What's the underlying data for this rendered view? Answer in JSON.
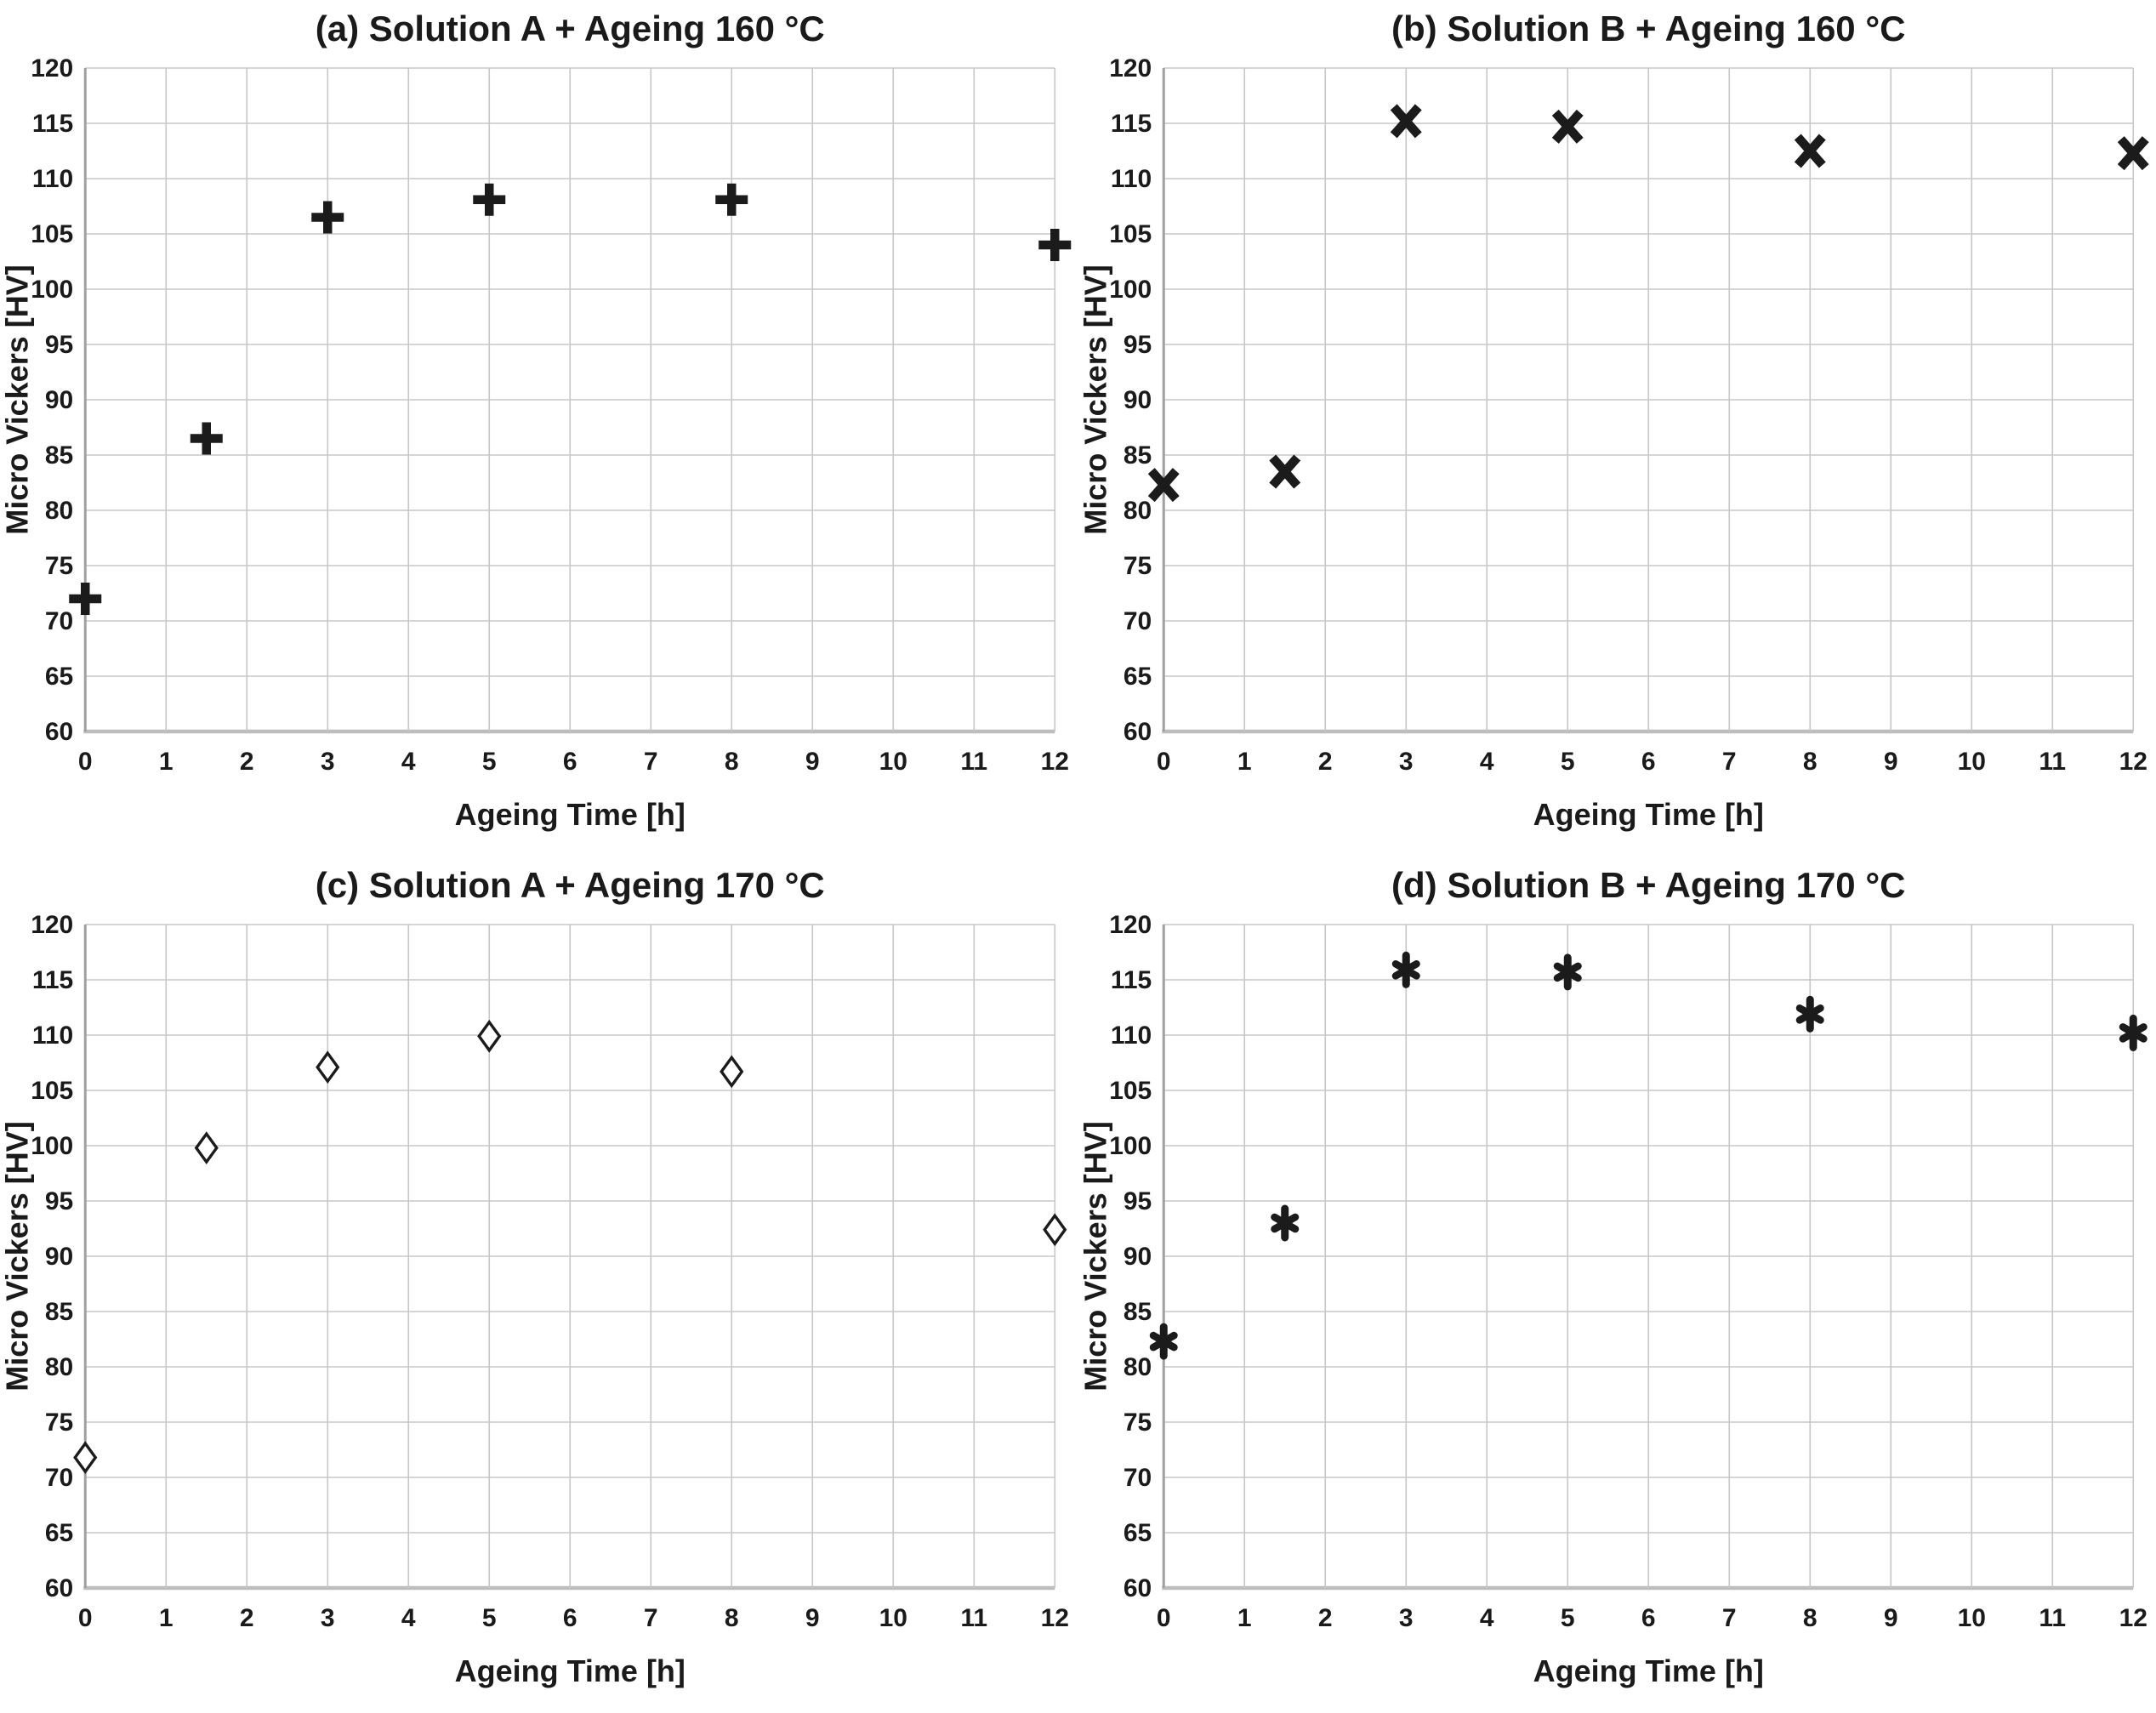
{
  "figure": {
    "xlabel": "Ageing Time [h]",
    "ylabel": "Micro Vickers [HV]"
  },
  "style": {
    "background": "#ffffff",
    "marker_color": "#1b1b1b",
    "grid_color": "#c7c7c7",
    "y_axis_line_color": "#a0a0a0",
    "x_axis_line_color": "#bdbdbd",
    "text_color": "#1a1a1a"
  },
  "chart_data": [
    {
      "type": "scatter",
      "panel": "a",
      "title": "(a) Solution A + Ageing 160 °C",
      "xlabel": "Ageing Time [h]",
      "ylabel": "Micro Vickers [HV]",
      "marker": "plus",
      "grid": true,
      "legend": "none",
      "xlim": [
        0,
        12
      ],
      "ylim": [
        60,
        120
      ],
      "x_tick_step": 1,
      "y_tick_step": 5,
      "x": [
        0,
        1.5,
        3,
        5,
        8,
        12
      ],
      "y": [
        72,
        86.5,
        106.5,
        108.1,
        108.1,
        104
      ]
    },
    {
      "type": "scatter",
      "panel": "b",
      "title": "(b) Solution B + Ageing 160 °C",
      "xlabel": "Ageing Time [h]",
      "ylabel": "Micro Vickers [HV]",
      "marker": "x",
      "grid": true,
      "legend": "none",
      "xlim": [
        0,
        12
      ],
      "ylim": [
        60,
        120
      ],
      "x_tick_step": 1,
      "y_tick_step": 5,
      "x": [
        0,
        1.5,
        3,
        5,
        8,
        12
      ],
      "y": [
        82.3,
        83.5,
        115.2,
        114.7,
        112.5,
        112.3
      ]
    },
    {
      "type": "scatter",
      "panel": "c",
      "title": "(c) Solution A + Ageing 170 °C",
      "xlabel": "Ageing Time [h]",
      "ylabel": "Micro Vickers [HV]",
      "marker": "diamond-open",
      "grid": true,
      "legend": "none",
      "xlim": [
        0,
        12
      ],
      "ylim": [
        60,
        120
      ],
      "x_tick_step": 1,
      "y_tick_step": 5,
      "x": [
        0,
        1.5,
        3,
        5,
        8,
        12
      ],
      "y": [
        71.8,
        99.8,
        107.1,
        109.9,
        106.7,
        92.4
      ]
    },
    {
      "type": "scatter",
      "panel": "d",
      "title": "(d) Solution B + Ageing 170 °C",
      "xlabel": "Ageing Time [h]",
      "ylabel": "Micro Vickers [HV]",
      "marker": "asterisk",
      "grid": true,
      "legend": "none",
      "xlim": [
        0,
        12
      ],
      "ylim": [
        60,
        120
      ],
      "x_tick_step": 1,
      "y_tick_step": 5,
      "x": [
        0,
        1.5,
        3,
        5,
        8,
        12
      ],
      "y": [
        82.3,
        93,
        115.9,
        115.7,
        111.9,
        110.2
      ]
    }
  ]
}
